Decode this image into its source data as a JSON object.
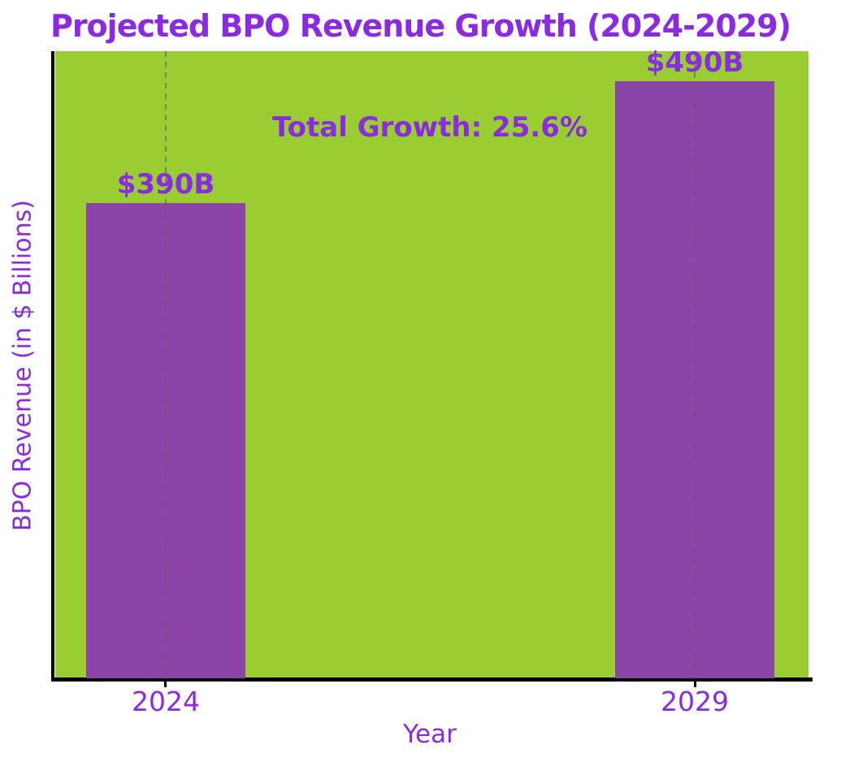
{
  "chart_data": {
    "type": "bar",
    "title": "Projected BPO Revenue Growth (2024-2029)",
    "categories": [
      "2024",
      "2029"
    ],
    "values": [
      390,
      490
    ],
    "bar_labels": [
      "$390B",
      "$490B"
    ],
    "annotation": "Total Growth: 25.6%",
    "xlabel": "Year",
    "ylabel": "BPO Revenue (in $ Billions)",
    "ylim": [
      0,
      515
    ],
    "grid": "vertical-dashed-at-bar-centers",
    "legend_position": "none",
    "y_tick_labels_visible": false,
    "colors": {
      "title_text": "#8A2BE2",
      "axis_text": "#8A2BE2",
      "annotation_text": "#8A2BE2",
      "bar_fill": "#8B44A8",
      "plot_background": "#9ACD32",
      "figure_background": "#FFFFFF",
      "axis_spine": "#000000",
      "gridline": "#5F5F5F"
    }
  }
}
